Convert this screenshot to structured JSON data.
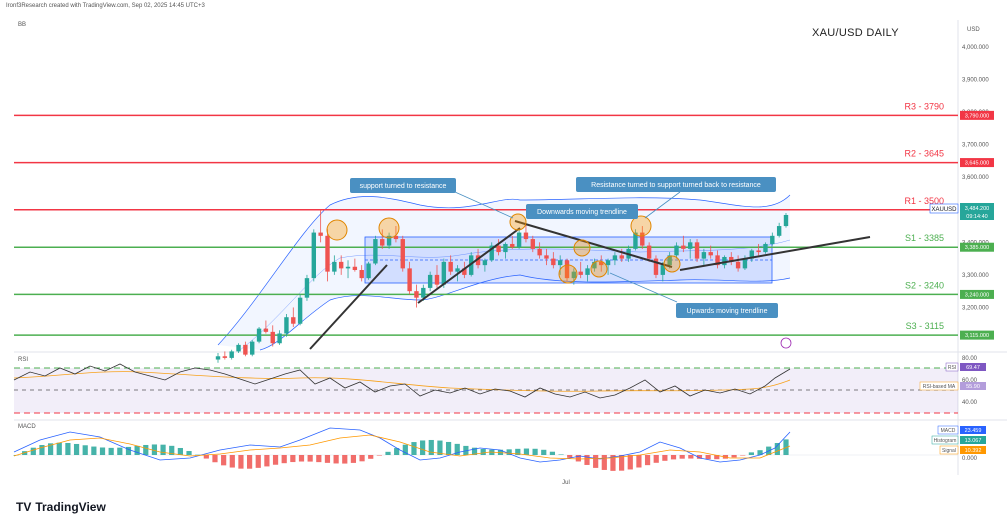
{
  "header": "Ironf3Research created with TradingView.com, Sep 02, 2025 14:45 UTC+3",
  "indicator_label": "BB",
  "title": "XAU/USD DAILY",
  "currency": "USD",
  "x_label": "Jul",
  "logo": "TradingView",
  "colors": {
    "up": "#26a69a",
    "down": "#ef5350",
    "resistance": "#f23645",
    "support": "#4caf50",
    "band": "#2962ff",
    "annotation": "#4a90c2"
  },
  "levels": [
    {
      "label": "R3 - 3790",
      "price": 3790,
      "tag": "3,790.000",
      "kind": "resistance"
    },
    {
      "label": "R2 - 3645",
      "price": 3645,
      "tag": "3,645.000",
      "kind": "resistance"
    },
    {
      "label": "R1 - 3500",
      "price": 3500,
      "tag": "3,500.000",
      "kind": "resistance"
    },
    {
      "label": "S1 - 3385",
      "price": 3385,
      "tag": "3,385.000",
      "kind": "support"
    },
    {
      "label": "S2 - 3240",
      "price": 3240,
      "tag": "3,240.000",
      "kind": "support"
    },
    {
      "label": "S3 - 3115",
      "price": 3115,
      "tag": "3,115.000",
      "kind": "support"
    }
  ],
  "price_tags": {
    "symbol": "XAUUSD",
    "last": "3,484.200",
    "countdown": "09:14:40"
  },
  "annotations": [
    "support turned to resistance",
    "Downwards moving trendline",
    "Resistance turned to support turned back to resistance",
    "Upwards moving trendline"
  ],
  "rsi": {
    "label": "RSI",
    "rsi_tag": "RSI",
    "rsi_value": "69.47",
    "ma_tag": "RSI-based MA",
    "ma_value": "55.90"
  },
  "macd": {
    "label": "MACD",
    "macd_tag": "MACD",
    "macd_value": "23.459",
    "hist_tag": "Histogram",
    "hist_value": "13.067",
    "signal_tag": "Signal",
    "signal_value": "10.392"
  },
  "chart_data": {
    "type": "candlestick",
    "title": "XAU/USD DAILY",
    "y_axis": {
      "min": 3000,
      "max": 4000,
      "ticks": [
        {
          "label": "4,000.000",
          "value": 4000
        },
        {
          "label": "3,900.000",
          "value": 3900
        },
        {
          "label": "3,800.000",
          "value": 3800
        },
        {
          "label": "3,700.000",
          "value": 3700
        },
        {
          "label": "3,600.000",
          "value": 3600
        },
        {
          "label": "3,400.000",
          "value": 3400
        },
        {
          "label": "3,300.000",
          "value": 3300
        },
        {
          "label": "3,200.000",
          "value": 3200
        }
      ]
    },
    "rsi_axis": [
      {
        "label": "80.00",
        "value": 80
      },
      {
        "label": "60.00",
        "value": 60
      },
      {
        "label": "40.00",
        "value": 40
      }
    ],
    "macd_axis": [
      {
        "label": "0.000",
        "value": 0
      }
    ],
    "ohlc": [
      [
        3040,
        3060,
        3030,
        3050
      ],
      [
        3050,
        3065,
        3040,
        3045
      ],
      [
        3045,
        3070,
        3040,
        3065
      ],
      [
        3065,
        3090,
        3060,
        3085
      ],
      [
        3085,
        3095,
        3050,
        3055
      ],
      [
        3055,
        3100,
        3050,
        3095
      ],
      [
        3095,
        3140,
        3090,
        3135
      ],
      [
        3135,
        3160,
        3120,
        3125
      ],
      [
        3125,
        3145,
        3080,
        3090
      ],
      [
        3090,
        3130,
        3085,
        3120
      ],
      [
        3120,
        3180,
        3110,
        3170
      ],
      [
        3170,
        3200,
        3140,
        3150
      ],
      [
        3150,
        3240,
        3145,
        3230
      ],
      [
        3230,
        3300,
        3220,
        3290
      ],
      [
        3290,
        3440,
        3280,
        3430
      ],
      [
        3430,
        3500,
        3400,
        3420
      ],
      [
        3420,
        3440,
        3280,
        3310
      ],
      [
        3310,
        3360,
        3300,
        3340
      ],
      [
        3340,
        3360,
        3300,
        3320
      ],
      [
        3320,
        3345,
        3290,
        3325
      ],
      [
        3325,
        3350,
        3310,
        3315
      ],
      [
        3315,
        3330,
        3280,
        3290
      ],
      [
        3290,
        3340,
        3285,
        3335
      ],
      [
        3335,
        3420,
        3330,
        3410
      ],
      [
        3410,
        3440,
        3380,
        3390
      ],
      [
        3390,
        3430,
        3380,
        3420
      ],
      [
        3420,
        3450,
        3400,
        3410
      ],
      [
        3410,
        3420,
        3310,
        3320
      ],
      [
        3320,
        3340,
        3240,
        3250
      ],
      [
        3250,
        3270,
        3200,
        3230
      ],
      [
        3230,
        3270,
        3220,
        3260
      ],
      [
        3260,
        3310,
        3250,
        3300
      ],
      [
        3300,
        3330,
        3260,
        3270
      ],
      [
        3270,
        3350,
        3260,
        3340
      ],
      [
        3340,
        3360,
        3300,
        3310
      ],
      [
        3310,
        3330,
        3280,
        3320
      ],
      [
        3320,
        3340,
        3290,
        3300
      ],
      [
        3300,
        3370,
        3295,
        3360
      ],
      [
        3360,
        3380,
        3320,
        3330
      ],
      [
        3330,
        3350,
        3310,
        3345
      ],
      [
        3345,
        3400,
        3340,
        3390
      ],
      [
        3390,
        3410,
        3360,
        3370
      ],
      [
        3370,
        3400,
        3350,
        3395
      ],
      [
        3395,
        3420,
        3380,
        3385
      ],
      [
        3385,
        3440,
        3380,
        3430
      ],
      [
        3430,
        3455,
        3400,
        3410
      ],
      [
        3410,
        3420,
        3370,
        3380
      ],
      [
        3380,
        3400,
        3350,
        3360
      ],
      [
        3360,
        3380,
        3330,
        3350
      ],
      [
        3350,
        3370,
        3320,
        3330
      ],
      [
        3330,
        3360,
        3300,
        3345
      ],
      [
        3345,
        3350,
        3280,
        3290
      ],
      [
        3290,
        3320,
        3270,
        3310
      ],
      [
        3310,
        3340,
        3290,
        3300
      ],
      [
        3300,
        3330,
        3280,
        3320
      ],
      [
        3320,
        3350,
        3310,
        3340
      ],
      [
        3340,
        3360,
        3310,
        3330
      ],
      [
        3330,
        3350,
        3300,
        3345
      ],
      [
        3345,
        3370,
        3330,
        3360
      ],
      [
        3360,
        3380,
        3340,
        3350
      ],
      [
        3350,
        3390,
        3340,
        3380
      ],
      [
        3380,
        3440,
        3375,
        3430
      ],
      [
        3430,
        3450,
        3380,
        3390
      ],
      [
        3390,
        3400,
        3340,
        3350
      ],
      [
        3350,
        3360,
        3290,
        3300
      ],
      [
        3300,
        3340,
        3280,
        3330
      ],
      [
        3330,
        3370,
        3320,
        3360
      ],
      [
        3360,
        3400,
        3350,
        3390
      ],
      [
        3390,
        3420,
        3370,
        3380
      ],
      [
        3380,
        3410,
        3350,
        3400
      ],
      [
        3400,
        3410,
        3340,
        3350
      ],
      [
        3350,
        3380,
        3330,
        3370
      ],
      [
        3370,
        3390,
        3350,
        3360
      ],
      [
        3360,
        3375,
        3320,
        3330
      ],
      [
        3330,
        3360,
        3320,
        3355
      ],
      [
        3355,
        3370,
        3330,
        3340
      ],
      [
        3340,
        3360,
        3310,
        3320
      ],
      [
        3320,
        3360,
        3315,
        3350
      ],
      [
        3350,
        3380,
        3340,
        3375
      ],
      [
        3375,
        3395,
        3360,
        3370
      ],
      [
        3370,
        3400,
        3365,
        3395
      ],
      [
        3395,
        3430,
        3390,
        3420
      ],
      [
        3420,
        3460,
        3415,
        3450
      ],
      [
        3450,
        3490,
        3445,
        3484
      ]
    ]
  }
}
